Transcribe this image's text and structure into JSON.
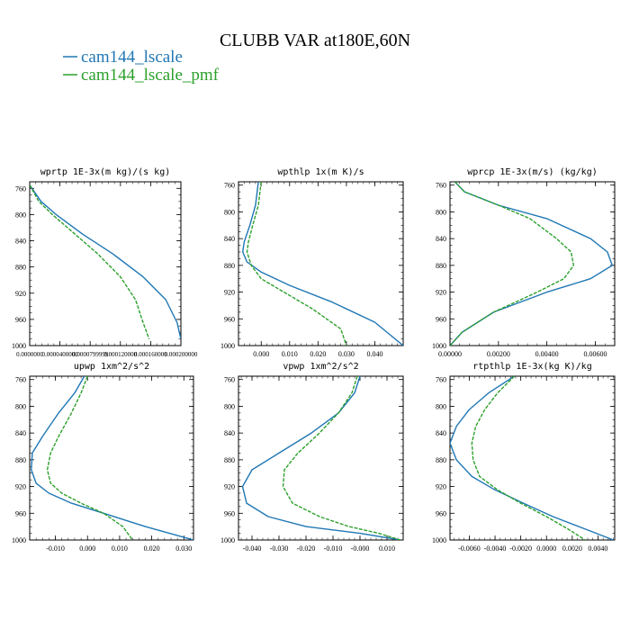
{
  "figure": {
    "title": "CLUBB VAR at180E,60N"
  },
  "legend": [
    {
      "name": "cam144_lscale",
      "color": "#1f77b4",
      "dash": "solid"
    },
    {
      "name": "cam144_lscale_pmf",
      "color": "#2ca02c",
      "dash": "dashed"
    }
  ],
  "chart_data": [
    {
      "type": "line",
      "title": "wprtp  1E-3x(m kg)/(s kg)",
      "ylim": [
        1000,
        750
      ],
      "yticks": [
        760,
        800,
        840,
        880,
        920,
        960,
        1000
      ],
      "xlim": [
        0.0,
        0.0002
      ],
      "xticks": [
        0.0,
        4e-05,
        8e-05,
        0.00012,
        0.00016,
        0.0002
      ],
      "xtick_labels": [
        "0.0000000",
        "0.0000400000",
        "0.0000799999",
        "0.000120000",
        "0.000160000",
        "0.000200000"
      ],
      "series": [
        {
          "name": "cam144_lscale",
          "x": [
            0.0,
            1.5e-05,
            3.5e-05,
            7e-05,
            0.00011,
            0.00015,
            0.00018,
            0.000195,
            0.0002
          ],
          "y": [
            755,
            780,
            800,
            830,
            860,
            895,
            930,
            965,
            990
          ]
        },
        {
          "name": "cam144_lscale_pmf",
          "x": [
            0.0,
            1.2e-05,
            3e-05,
            6e-05,
            9e-05,
            0.00012,
            0.00014,
            0.00015,
            0.000158
          ],
          "y": [
            755,
            780,
            800,
            830,
            860,
            895,
            930,
            965,
            990
          ]
        }
      ]
    },
    {
      "type": "line",
      "title": "wpthlp  1x(m K)/s",
      "ylim": [
        1000,
        755
      ],
      "yticks": [
        760,
        800,
        840,
        880,
        920,
        960,
        1000
      ],
      "xlim": [
        -0.008,
        0.05
      ],
      "xticks": [
        0.0,
        0.01,
        0.02,
        0.03,
        0.04
      ],
      "xtick_labels": [
        "0.000",
        "0.010",
        "0.020",
        "0.030",
        "0.040"
      ],
      "series": [
        {
          "name": "cam144_lscale",
          "x": [
            -0.001,
            -0.002,
            -0.004,
            -0.006,
            -0.0065,
            -0.005,
            0.0,
            0.01,
            0.025,
            0.04,
            0.05
          ],
          "y": [
            755,
            790,
            820,
            845,
            860,
            875,
            890,
            910,
            935,
            965,
            1000
          ]
        },
        {
          "name": "cam144_lscale_pmf",
          "x": [
            0.0,
            -0.001,
            -0.003,
            -0.0045,
            -0.005,
            -0.0035,
            0.0,
            0.008,
            0.018,
            0.028,
            0.03
          ],
          "y": [
            755,
            790,
            820,
            845,
            860,
            880,
            900,
            920,
            945,
            975,
            1000
          ]
        }
      ]
    },
    {
      "type": "line",
      "title": "wprcp  1E-3x(m/s) (kg/kg)",
      "ylim": [
        1000,
        755
      ],
      "yticks": [
        760,
        800,
        840,
        880,
        920,
        960,
        1000
      ],
      "xlim": [
        0.0,
        0.0068
      ],
      "xticks": [
        0.0,
        0.002,
        0.004,
        0.006
      ],
      "xtick_labels": [
        "0.00000",
        "0.00200",
        "0.00400",
        "0.00600"
      ],
      "series": [
        {
          "name": "cam144_lscale",
          "x": [
            0.0002,
            0.0006,
            0.002,
            0.004,
            0.0058,
            0.0065,
            0.0067,
            0.0058,
            0.004,
            0.0018,
            0.0005,
            0.0
          ],
          "y": [
            755,
            770,
            790,
            810,
            840,
            860,
            880,
            900,
            920,
            950,
            980,
            1000
          ]
        },
        {
          "name": "cam144_lscale_pmf",
          "x": [
            0.0002,
            0.0006,
            0.002,
            0.0033,
            0.0044,
            0.005,
            0.0051,
            0.0047,
            0.0036,
            0.0018,
            0.0005,
            0.0
          ],
          "y": [
            755,
            770,
            790,
            810,
            840,
            860,
            880,
            900,
            920,
            950,
            980,
            1000
          ]
        }
      ]
    },
    {
      "type": "line",
      "title": "upwp  1xm^2/s^2",
      "ylim": [
        1000,
        755
      ],
      "yticks": [
        760,
        800,
        840,
        880,
        920,
        960,
        1000
      ],
      "xlim": [
        -0.018,
        0.033
      ],
      "xticks": [
        -0.01,
        0.0,
        0.01,
        0.02,
        0.03
      ],
      "xtick_labels": [
        "-0.010",
        "0.000",
        "0.010",
        "0.020",
        "0.030"
      ],
      "series": [
        {
          "name": "cam144_lscale",
          "x": [
            -0.001,
            -0.004,
            -0.009,
            -0.014,
            -0.0172,
            -0.0175,
            -0.016,
            -0.012,
            -0.005,
            0.005,
            0.018,
            0.033
          ],
          "y": [
            755,
            780,
            810,
            845,
            870,
            895,
            915,
            930,
            945,
            960,
            980,
            1000
          ]
        },
        {
          "name": "cam144_lscale_pmf",
          "x": [
            0.0,
            -0.002,
            -0.005,
            -0.009,
            -0.0115,
            -0.0125,
            -0.0115,
            -0.008,
            -0.002,
            0.005,
            0.011,
            0.014
          ],
          "y": [
            755,
            780,
            810,
            845,
            870,
            895,
            915,
            930,
            945,
            960,
            980,
            1000
          ]
        }
      ]
    },
    {
      "type": "line",
      "title": "vpwp  1xm^2/s^2",
      "ylim": [
        1000,
        755
      ],
      "yticks": [
        760,
        800,
        840,
        880,
        920,
        960,
        1000
      ],
      "xlim": [
        -0.045,
        0.016
      ],
      "xticks": [
        -0.04,
        -0.03,
        -0.02,
        -0.01,
        0.0,
        0.01
      ],
      "xtick_labels": [
        "-0.040",
        "-0.030",
        "-0.020",
        "-0.010",
        "-0.000",
        "0.010"
      ],
      "series": [
        {
          "name": "cam144_lscale",
          "x": [
            0.0,
            -0.002,
            -0.008,
            -0.018,
            -0.03,
            -0.04,
            -0.0435,
            -0.042,
            -0.034,
            -0.02,
            0.0,
            0.015
          ],
          "y": [
            755,
            780,
            810,
            840,
            870,
            895,
            920,
            945,
            965,
            980,
            990,
            1000
          ]
        },
        {
          "name": "cam144_lscale_pmf",
          "x": [
            -0.001,
            -0.003,
            -0.008,
            -0.015,
            -0.023,
            -0.028,
            -0.0285,
            -0.025,
            -0.015,
            -0.004,
            0.007,
            0.015
          ],
          "y": [
            755,
            780,
            810,
            840,
            870,
            895,
            920,
            945,
            965,
            980,
            990,
            1000
          ]
        }
      ]
    },
    {
      "type": "line",
      "title": "rtpthlp  1E-3x(kg K)/kg",
      "ylim": [
        1000,
        755
      ],
      "yticks": [
        760,
        800,
        840,
        880,
        920,
        960,
        1000
      ],
      "xlim": [
        -0.0075,
        0.0053
      ],
      "xticks": [
        -0.006,
        -0.004,
        -0.002,
        0.0,
        0.002,
        0.004
      ],
      "xtick_labels": [
        "-0.0060",
        "-0.0040",
        "-0.0020",
        "0.0000",
        "0.0020",
        "0.0040"
      ],
      "series": [
        {
          "name": "cam144_lscale",
          "x": [
            -0.0025,
            -0.0045,
            -0.006,
            -0.007,
            -0.0075,
            -0.007,
            -0.0058,
            -0.004,
            -0.0018,
            0.0005,
            0.0032,
            0.0052
          ],
          "y": [
            755,
            780,
            805,
            830,
            855,
            880,
            905,
            925,
            945,
            965,
            985,
            1000
          ]
        },
        {
          "name": "cam144_lscale_pmf",
          "x": [
            -0.0025,
            -0.0038,
            -0.0048,
            -0.0055,
            -0.0058,
            -0.0057,
            -0.0052,
            -0.0038,
            -0.002,
            0.0,
            0.0018,
            0.003
          ],
          "y": [
            755,
            780,
            805,
            830,
            855,
            880,
            905,
            925,
            945,
            965,
            985,
            1000
          ]
        }
      ]
    }
  ]
}
